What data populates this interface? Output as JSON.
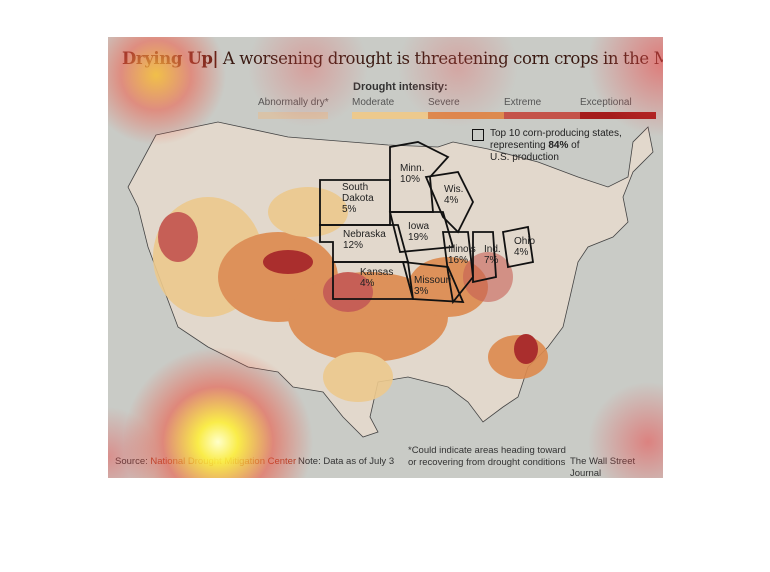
{
  "title": {
    "prefix": "Drying Up|",
    "text": " A worsening drought is threatening corn crops in the Midwest"
  },
  "legend": {
    "title": "Drought intensity:",
    "items": [
      {
        "label": "Abnormally dry*",
        "color": "#d9c3a8"
      },
      {
        "label": "Moderate",
        "color": "#ecc98d"
      },
      {
        "label": "Severe",
        "color": "#dd8a4e"
      },
      {
        "label": "Extreme",
        "color": "#c4534a"
      },
      {
        "label": "Exceptional",
        "color": "#a51c1c"
      }
    ]
  },
  "corn_key": {
    "line1": "Top 10 corn-producing states,",
    "line2_pre": "representing ",
    "line2_bold": "84%",
    "line2_post": " of",
    "line3": "U.S. production"
  },
  "states": [
    {
      "name": "Minn.",
      "pct": "10%"
    },
    {
      "name": "South Dakota",
      "pct": "5%"
    },
    {
      "name": "Wis.",
      "pct": "4%"
    },
    {
      "name": "Nebraska",
      "pct": "12%"
    },
    {
      "name": "Iowa",
      "pct": "19%"
    },
    {
      "name": "Illinois",
      "pct": "16%"
    },
    {
      "name": "Ind.",
      "pct": "7%"
    },
    {
      "name": "Ohio",
      "pct": "4%"
    },
    {
      "name": "Kansas",
      "pct": "4%"
    },
    {
      "name": "Missouri",
      "pct": "3%"
    }
  ],
  "footer": {
    "source_label": "Source: ",
    "source": "National Drought Mitigation Center",
    "note": "Note: Data as of July 3",
    "footnote1": "*Could indicate areas heading toward",
    "footnote2": "or recovering from drought conditions",
    "credit": "The Wall Street Journal"
  }
}
